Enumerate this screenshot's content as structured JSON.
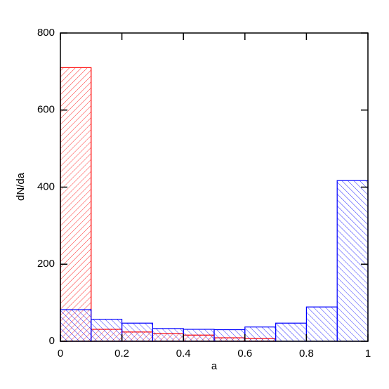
{
  "chart_data": {
    "type": "histogram",
    "x_label": "a",
    "y_label": "dN/da",
    "bins": [
      0,
      0.1,
      0.2,
      0.3,
      0.4,
      0.5,
      0.6,
      0.7,
      0.8,
      0.9,
      1
    ],
    "series": [
      {
        "color": "#ff0000",
        "values": [
          710,
          31,
          24,
          20,
          16,
          9,
          7,
          0,
          0,
          0
        ]
      },
      {
        "color": "#0000ff",
        "values": [
          82,
          57,
          47,
          33,
          31,
          30,
          37,
          47,
          89,
          417
        ]
      }
    ],
    "xlim": [
      0,
      1
    ],
    "ylim": [
      0,
      800
    ],
    "xticks": [
      0,
      0.2,
      0.4,
      0.6,
      0.8,
      1
    ],
    "yticks": [
      0,
      200,
      400,
      600,
      800
    ]
  }
}
